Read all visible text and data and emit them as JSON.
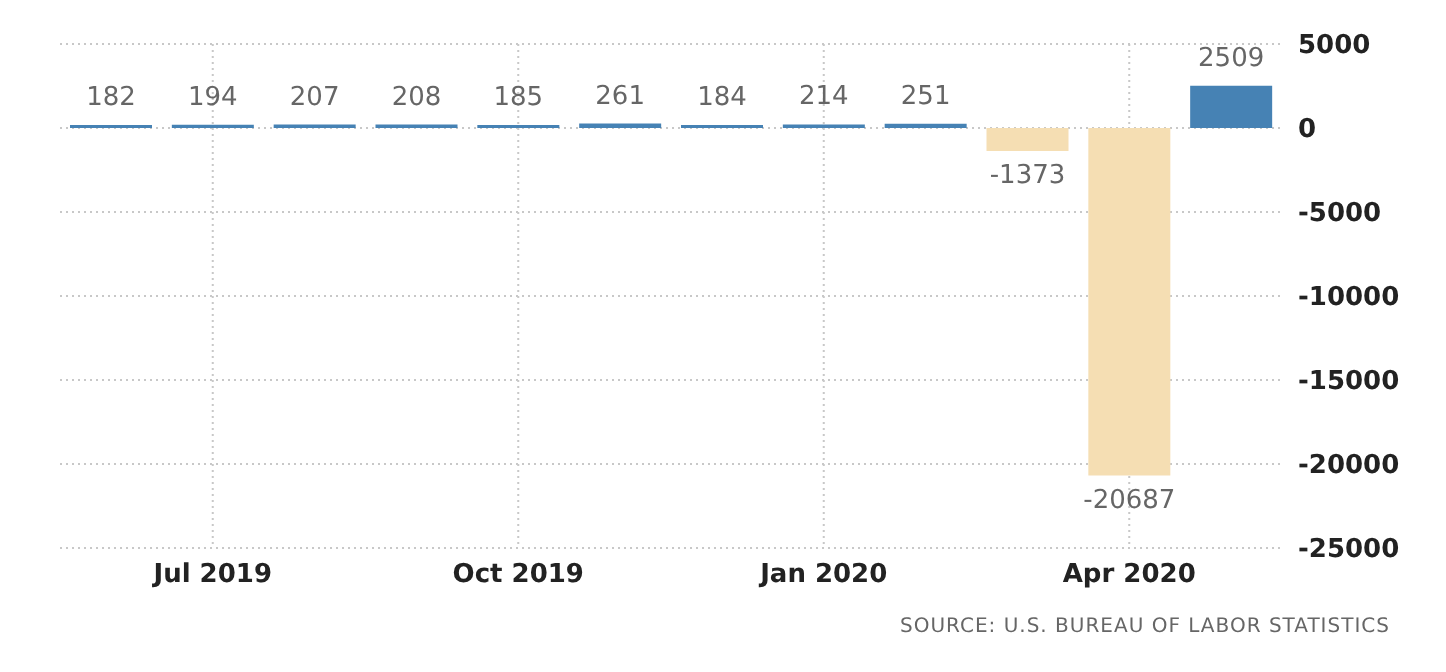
{
  "chart_data": {
    "type": "bar",
    "categories": [
      null,
      "Jul 2019",
      null,
      null,
      "Oct 2019",
      null,
      null,
      "Jan 2020",
      null,
      null,
      "Apr 2020",
      null
    ],
    "values": [
      182,
      194,
      207,
      208,
      185,
      261,
      184,
      214,
      251,
      -1373,
      -20687,
      2509
    ],
    "colors": [
      "#4682b4",
      "#4682b4",
      "#4682b4",
      "#4682b4",
      "#4682b4",
      "#4682b4",
      "#4682b4",
      "#4682b4",
      "#4682b4",
      "#f5deb3",
      "#f5deb3",
      "#4682b4"
    ],
    "ylim": [
      -25000,
      5000
    ],
    "yticks": [
      -25000,
      -20000,
      -15000,
      -10000,
      -5000,
      0,
      5000
    ],
    "grid": true,
    "data_labels": true,
    "annotations": [
      "SOURCE: U.S. BUREAU OF LABOR STATISTICS"
    ]
  }
}
